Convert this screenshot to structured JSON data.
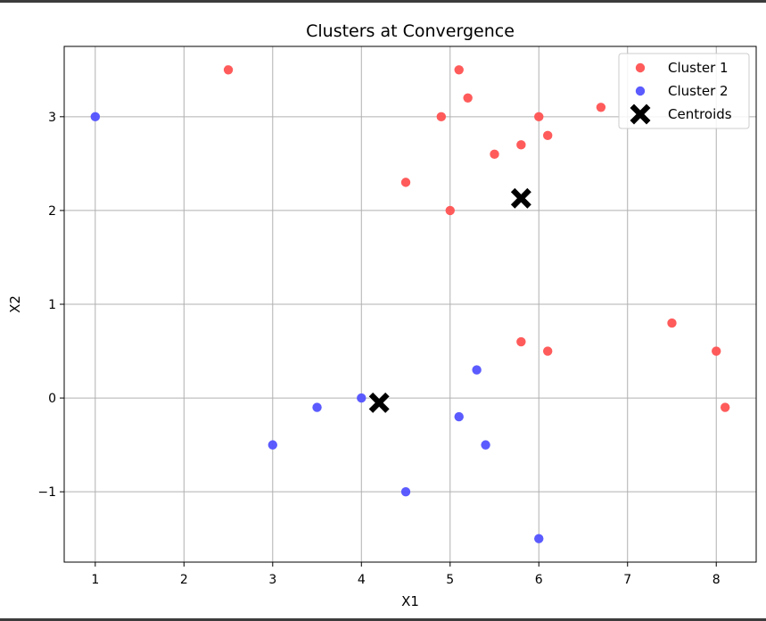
{
  "chart_data": {
    "type": "scatter",
    "title": "Clusters at Convergence",
    "xlabel": "X1",
    "ylabel": "X2",
    "xlim": [
      0.65,
      8.45
    ],
    "ylim": [
      -1.75,
      3.75
    ],
    "x_ticks": [
      1,
      2,
      3,
      4,
      5,
      6,
      7,
      8
    ],
    "y_ticks": [
      -1,
      0,
      1,
      2,
      3
    ],
    "x_tick_labels": [
      "1",
      "2",
      "3",
      "4",
      "5",
      "6",
      "7",
      "8"
    ],
    "y_tick_labels": [
      "−1",
      "0",
      "1",
      "2",
      "3"
    ],
    "grid": true,
    "legend_position": "top-right",
    "series": [
      {
        "name": "Cluster 1",
        "color": "#ff5252",
        "marker": "circle",
        "points": [
          [
            2.5,
            3.5
          ],
          [
            5.1,
            3.5
          ],
          [
            5.2,
            3.2
          ],
          [
            4.9,
            3.0
          ],
          [
            6.0,
            3.0
          ],
          [
            6.7,
            3.1
          ],
          [
            6.1,
            2.8
          ],
          [
            5.8,
            2.7
          ],
          [
            5.5,
            2.6
          ],
          [
            4.5,
            2.3
          ],
          [
            5.0,
            2.0
          ],
          [
            5.8,
            0.6
          ],
          [
            6.1,
            0.5
          ],
          [
            7.5,
            0.8
          ],
          [
            8.0,
            0.5
          ],
          [
            8.1,
            -0.1
          ]
        ]
      },
      {
        "name": "Cluster 2",
        "color": "#5252ff",
        "marker": "circle",
        "points": [
          [
            1.0,
            3.0
          ],
          [
            4.0,
            0.0
          ],
          [
            3.5,
            -0.1
          ],
          [
            3.0,
            -0.5
          ],
          [
            5.3,
            0.3
          ],
          [
            5.1,
            -0.2
          ],
          [
            5.4,
            -0.5
          ],
          [
            4.5,
            -1.0
          ],
          [
            6.0,
            -1.5
          ]
        ]
      },
      {
        "name": "Centroids",
        "color": "#000000",
        "marker": "X",
        "points": [
          [
            5.8,
            2.13
          ],
          [
            4.2,
            -0.05
          ]
        ]
      }
    ]
  }
}
